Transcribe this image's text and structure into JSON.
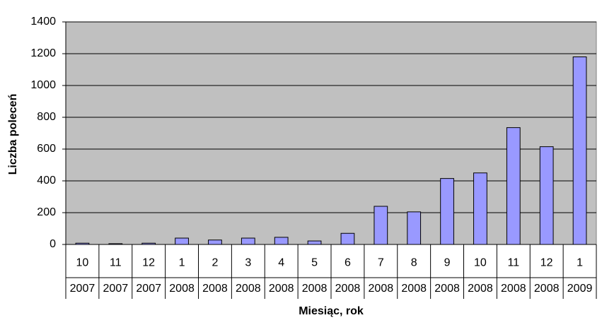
{
  "chart_data": {
    "type": "bar",
    "x_label": "Miesiąc, rok",
    "y_label": "Liczba poleceń",
    "categories": [
      "10",
      "11",
      "12",
      "1",
      "2",
      "3",
      "4",
      "5",
      "6",
      "7",
      "8",
      "9",
      "10",
      "11",
      "12",
      "1"
    ],
    "category_years": [
      "2007",
      "2007",
      "2007",
      "2008",
      "2008",
      "2008",
      "2008",
      "2008",
      "2008",
      "2008",
      "2008",
      "2008",
      "2008",
      "2008",
      "2008",
      "2009"
    ],
    "values": [
      8,
      5,
      8,
      40,
      28,
      40,
      45,
      22,
      70,
      240,
      205,
      415,
      450,
      735,
      615,
      1180
    ],
    "color": "#9999ff",
    "ylim": [
      0,
      1400
    ],
    "yticks": [
      0,
      200,
      400,
      600,
      800,
      1000,
      1200,
      1400
    ],
    "grid": true
  }
}
